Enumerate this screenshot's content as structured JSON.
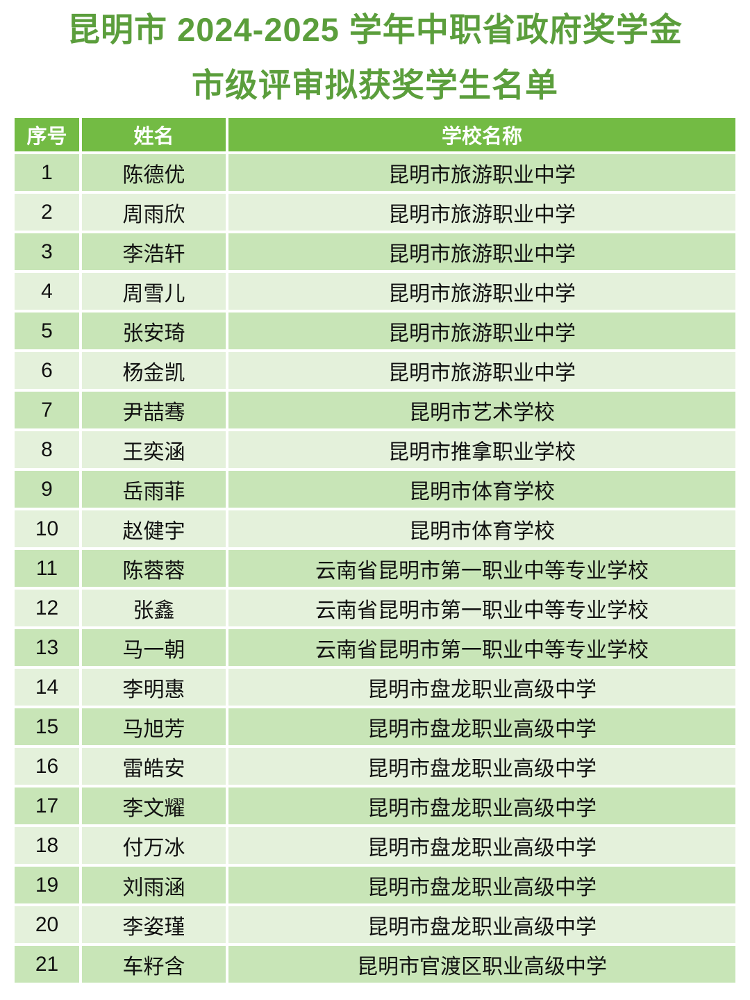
{
  "title": {
    "line1": "昆明市 2024-2025 学年中职省政府奖学金",
    "line2": "市级评审拟获奖学生名单"
  },
  "table": {
    "headers": [
      "序号",
      "姓名",
      "学校名称"
    ],
    "rows": [
      {
        "no": "1",
        "name": "陈德优",
        "school": "昆明市旅游职业中学"
      },
      {
        "no": "2",
        "name": "周雨欣",
        "school": "昆明市旅游职业中学"
      },
      {
        "no": "3",
        "name": "李浩轩",
        "school": "昆明市旅游职业中学"
      },
      {
        "no": "4",
        "name": "周雪儿",
        "school": "昆明市旅游职业中学"
      },
      {
        "no": "5",
        "name": "张安琦",
        "school": "昆明市旅游职业中学"
      },
      {
        "no": "6",
        "name": "杨金凯",
        "school": "昆明市旅游职业中学"
      },
      {
        "no": "7",
        "name": "尹喆骞",
        "school": "昆明市艺术学校"
      },
      {
        "no": "8",
        "name": "王奕涵",
        "school": "昆明市推拿职业学校"
      },
      {
        "no": "9",
        "name": "岳雨菲",
        "school": "昆明市体育学校"
      },
      {
        "no": "10",
        "name": "赵健宇",
        "school": "昆明市体育学校"
      },
      {
        "no": "11",
        "name": "陈蓉蓉",
        "school": "云南省昆明市第一职业中等专业学校"
      },
      {
        "no": "12",
        "name": "张鑫",
        "school": "云南省昆明市第一职业中等专业学校"
      },
      {
        "no": "13",
        "name": "马一朝",
        "school": "云南省昆明市第一职业中等专业学校"
      },
      {
        "no": "14",
        "name": "李明惠",
        "school": "昆明市盘龙职业高级中学"
      },
      {
        "no": "15",
        "name": "马旭芳",
        "school": "昆明市盘龙职业高级中学"
      },
      {
        "no": "16",
        "name": "雷皓安",
        "school": "昆明市盘龙职业高级中学"
      },
      {
        "no": "17",
        "name": "李文耀",
        "school": "昆明市盘龙职业高级中学"
      },
      {
        "no": "18",
        "name": "付万冰",
        "school": "昆明市盘龙职业高级中学"
      },
      {
        "no": "19",
        "name": "刘雨涵",
        "school": "昆明市盘龙职业高级中学"
      },
      {
        "no": "20",
        "name": "李姿瑾",
        "school": "昆明市盘龙职业高级中学"
      },
      {
        "no": "21",
        "name": "车籽含",
        "school": "昆明市官渡区职业高级中学"
      }
    ]
  },
  "colors": {
    "title_green": "#5B9E3C",
    "header_green": "#73BB44",
    "row_odd": "#C8E5B7",
    "row_even": "#E4F1DB",
    "body_text": "#111111"
  }
}
